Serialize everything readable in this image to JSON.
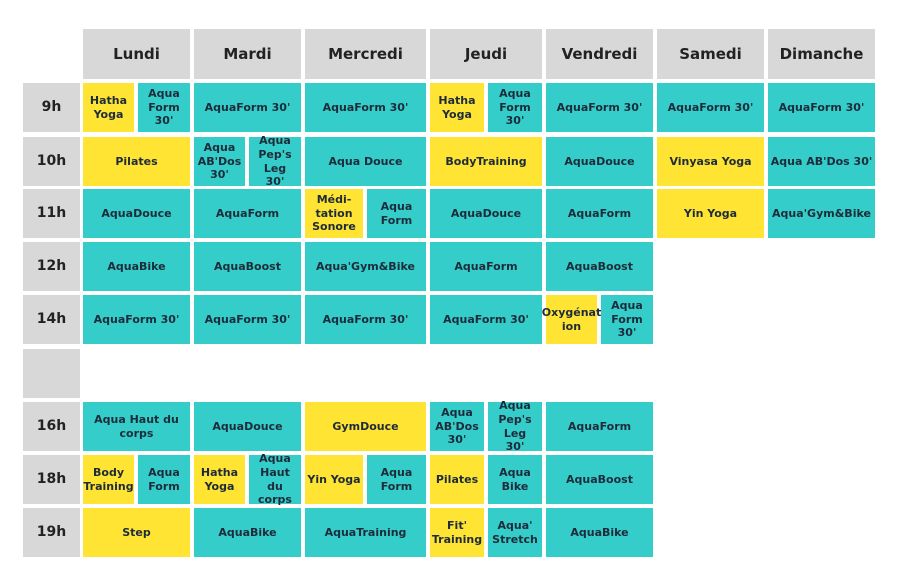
{
  "colors": {
    "aqua": "#35cdc9",
    "dry": "#ffe433",
    "header": "#d8d8d8"
  },
  "days": [
    "Lundi",
    "Mardi",
    "Mercredi",
    "Jeudi",
    "Vendredi",
    "Samedi",
    "Dimanche"
  ],
  "hours": [
    "9h",
    "10h",
    "11h",
    "12h",
    "14h",
    "",
    "16h",
    "18h",
    "19h"
  ],
  "sessions": [
    {
      "row": 0,
      "day": 0,
      "half": 0,
      "label": "Hatha\nYoga",
      "kind": "dry"
    },
    {
      "row": 0,
      "day": 0,
      "half": 1,
      "label": "Aqua\nForm 30'",
      "kind": "aqua"
    },
    {
      "row": 0,
      "day": 1,
      "label": "AquaForm 30'",
      "kind": "aqua"
    },
    {
      "row": 0,
      "day": 2,
      "label": "AquaForm 30'",
      "kind": "aqua"
    },
    {
      "row": 0,
      "day": 3,
      "half": 0,
      "label": "Hatha\nYoga",
      "kind": "dry"
    },
    {
      "row": 0,
      "day": 3,
      "half": 1,
      "label": "Aqua\nForm 30'",
      "kind": "aqua"
    },
    {
      "row": 0,
      "day": 4,
      "label": "AquaForm 30'",
      "kind": "aqua"
    },
    {
      "row": 0,
      "day": 5,
      "label": "AquaForm 30'",
      "kind": "aqua"
    },
    {
      "row": 0,
      "day": 6,
      "label": "AquaForm 30'",
      "kind": "aqua"
    },
    {
      "row": 1,
      "day": 0,
      "label": "Pilates",
      "kind": "dry"
    },
    {
      "row": 1,
      "day": 1,
      "half": 0,
      "label": "Aqua\nAB'Dos\n30'",
      "kind": "aqua"
    },
    {
      "row": 1,
      "day": 1,
      "half": 1,
      "label": "Aqua\nPep's Leg\n30'",
      "kind": "aqua"
    },
    {
      "row": 1,
      "day": 2,
      "label": "Aqua   Douce",
      "kind": "aqua"
    },
    {
      "row": 1,
      "day": 3,
      "label": "BodyTraining",
      "kind": "dry"
    },
    {
      "row": 1,
      "day": 4,
      "label": "AquaDouce",
      "kind": "aqua"
    },
    {
      "row": 1,
      "day": 5,
      "label": "Vinyasa Yoga",
      "kind": "dry"
    },
    {
      "row": 1,
      "day": 6,
      "label": "Aqua AB'Dos 30'",
      "kind": "aqua"
    },
    {
      "row": 2,
      "day": 0,
      "label": "AquaDouce",
      "kind": "aqua"
    },
    {
      "row": 2,
      "day": 1,
      "label": "AquaForm",
      "kind": "aqua"
    },
    {
      "row": 2,
      "day": 2,
      "half": 0,
      "label": "Médi-tation\nSonore",
      "kind": "dry"
    },
    {
      "row": 2,
      "day": 2,
      "half": 1,
      "label": "Aqua\nForm",
      "kind": "aqua"
    },
    {
      "row": 2,
      "day": 3,
      "label": "AquaDouce",
      "kind": "aqua"
    },
    {
      "row": 2,
      "day": 4,
      "label": "AquaForm",
      "kind": "aqua"
    },
    {
      "row": 2,
      "day": 5,
      "label": "Yin Yoga",
      "kind": "dry"
    },
    {
      "row": 2,
      "day": 6,
      "label": "Aqua'Gym&Bike",
      "kind": "aqua"
    },
    {
      "row": 3,
      "day": 0,
      "label": "AquaBike",
      "kind": "aqua"
    },
    {
      "row": 3,
      "day": 1,
      "label": "AquaBoost",
      "kind": "aqua"
    },
    {
      "row": 3,
      "day": 2,
      "label": "Aqua'Gym&Bike",
      "kind": "aqua"
    },
    {
      "row": 3,
      "day": 3,
      "label": "AquaForm",
      "kind": "aqua"
    },
    {
      "row": 3,
      "day": 4,
      "label": "AquaBoost",
      "kind": "aqua"
    },
    {
      "row": 4,
      "day": 0,
      "label": "AquaForm 30'",
      "kind": "aqua"
    },
    {
      "row": 4,
      "day": 1,
      "label": "AquaForm 30'",
      "kind": "aqua"
    },
    {
      "row": 4,
      "day": 2,
      "label": "AquaForm 30'",
      "kind": "aqua"
    },
    {
      "row": 4,
      "day": 3,
      "label": "AquaForm 30'",
      "kind": "aqua"
    },
    {
      "row": 4,
      "day": 4,
      "half": 0,
      "label": "Oxygénat\nion",
      "kind": "dry"
    },
    {
      "row": 4,
      "day": 4,
      "half": 1,
      "label": "Aqua\nForm 30'",
      "kind": "aqua"
    },
    {
      "row": 6,
      "day": 0,
      "label": "Aqua Haut du corps",
      "kind": "aqua"
    },
    {
      "row": 6,
      "day": 1,
      "label": "AquaDouce",
      "kind": "aqua"
    },
    {
      "row": 6,
      "day": 2,
      "label": "GymDouce",
      "kind": "dry"
    },
    {
      "row": 6,
      "day": 3,
      "half": 0,
      "label": "Aqua\nAB'Dos\n30'",
      "kind": "aqua"
    },
    {
      "row": 6,
      "day": 3,
      "half": 1,
      "label": "Aqua\nPep's Leg\n30'",
      "kind": "aqua"
    },
    {
      "row": 6,
      "day": 4,
      "label": "AquaForm",
      "kind": "aqua"
    },
    {
      "row": 7,
      "day": 0,
      "half": 0,
      "label": "Body\nTraining",
      "kind": "dry"
    },
    {
      "row": 7,
      "day": 0,
      "half": 1,
      "label": "Aqua\nForm",
      "kind": "aqua"
    },
    {
      "row": 7,
      "day": 1,
      "half": 0,
      "label": "Hatha\nYoga",
      "kind": "dry"
    },
    {
      "row": 7,
      "day": 1,
      "half": 1,
      "label": "Aqua\nHaut du\ncorps",
      "kind": "aqua"
    },
    {
      "row": 7,
      "day": 2,
      "half": 0,
      "label": "Yin Yoga",
      "kind": "dry"
    },
    {
      "row": 7,
      "day": 2,
      "half": 1,
      "label": "Aqua\nForm",
      "kind": "aqua"
    },
    {
      "row": 7,
      "day": 3,
      "half": 0,
      "label": "Pilates",
      "kind": "dry"
    },
    {
      "row": 7,
      "day": 3,
      "half": 1,
      "label": "Aqua\nBike",
      "kind": "aqua"
    },
    {
      "row": 7,
      "day": 4,
      "label": "AquaBoost",
      "kind": "aqua"
    },
    {
      "row": 8,
      "day": 0,
      "label": "Step",
      "kind": "dry"
    },
    {
      "row": 8,
      "day": 1,
      "label": "AquaBike",
      "kind": "aqua"
    },
    {
      "row": 8,
      "day": 2,
      "label": "AquaTraining",
      "kind": "aqua"
    },
    {
      "row": 8,
      "day": 3,
      "half": 0,
      "label": "Fit'\nTraining",
      "kind": "dry"
    },
    {
      "row": 8,
      "day": 3,
      "half": 1,
      "label": "Aqua'\nStretch",
      "kind": "aqua"
    },
    {
      "row": 8,
      "day": 4,
      "label": "AquaBike",
      "kind": "aqua"
    }
  ]
}
